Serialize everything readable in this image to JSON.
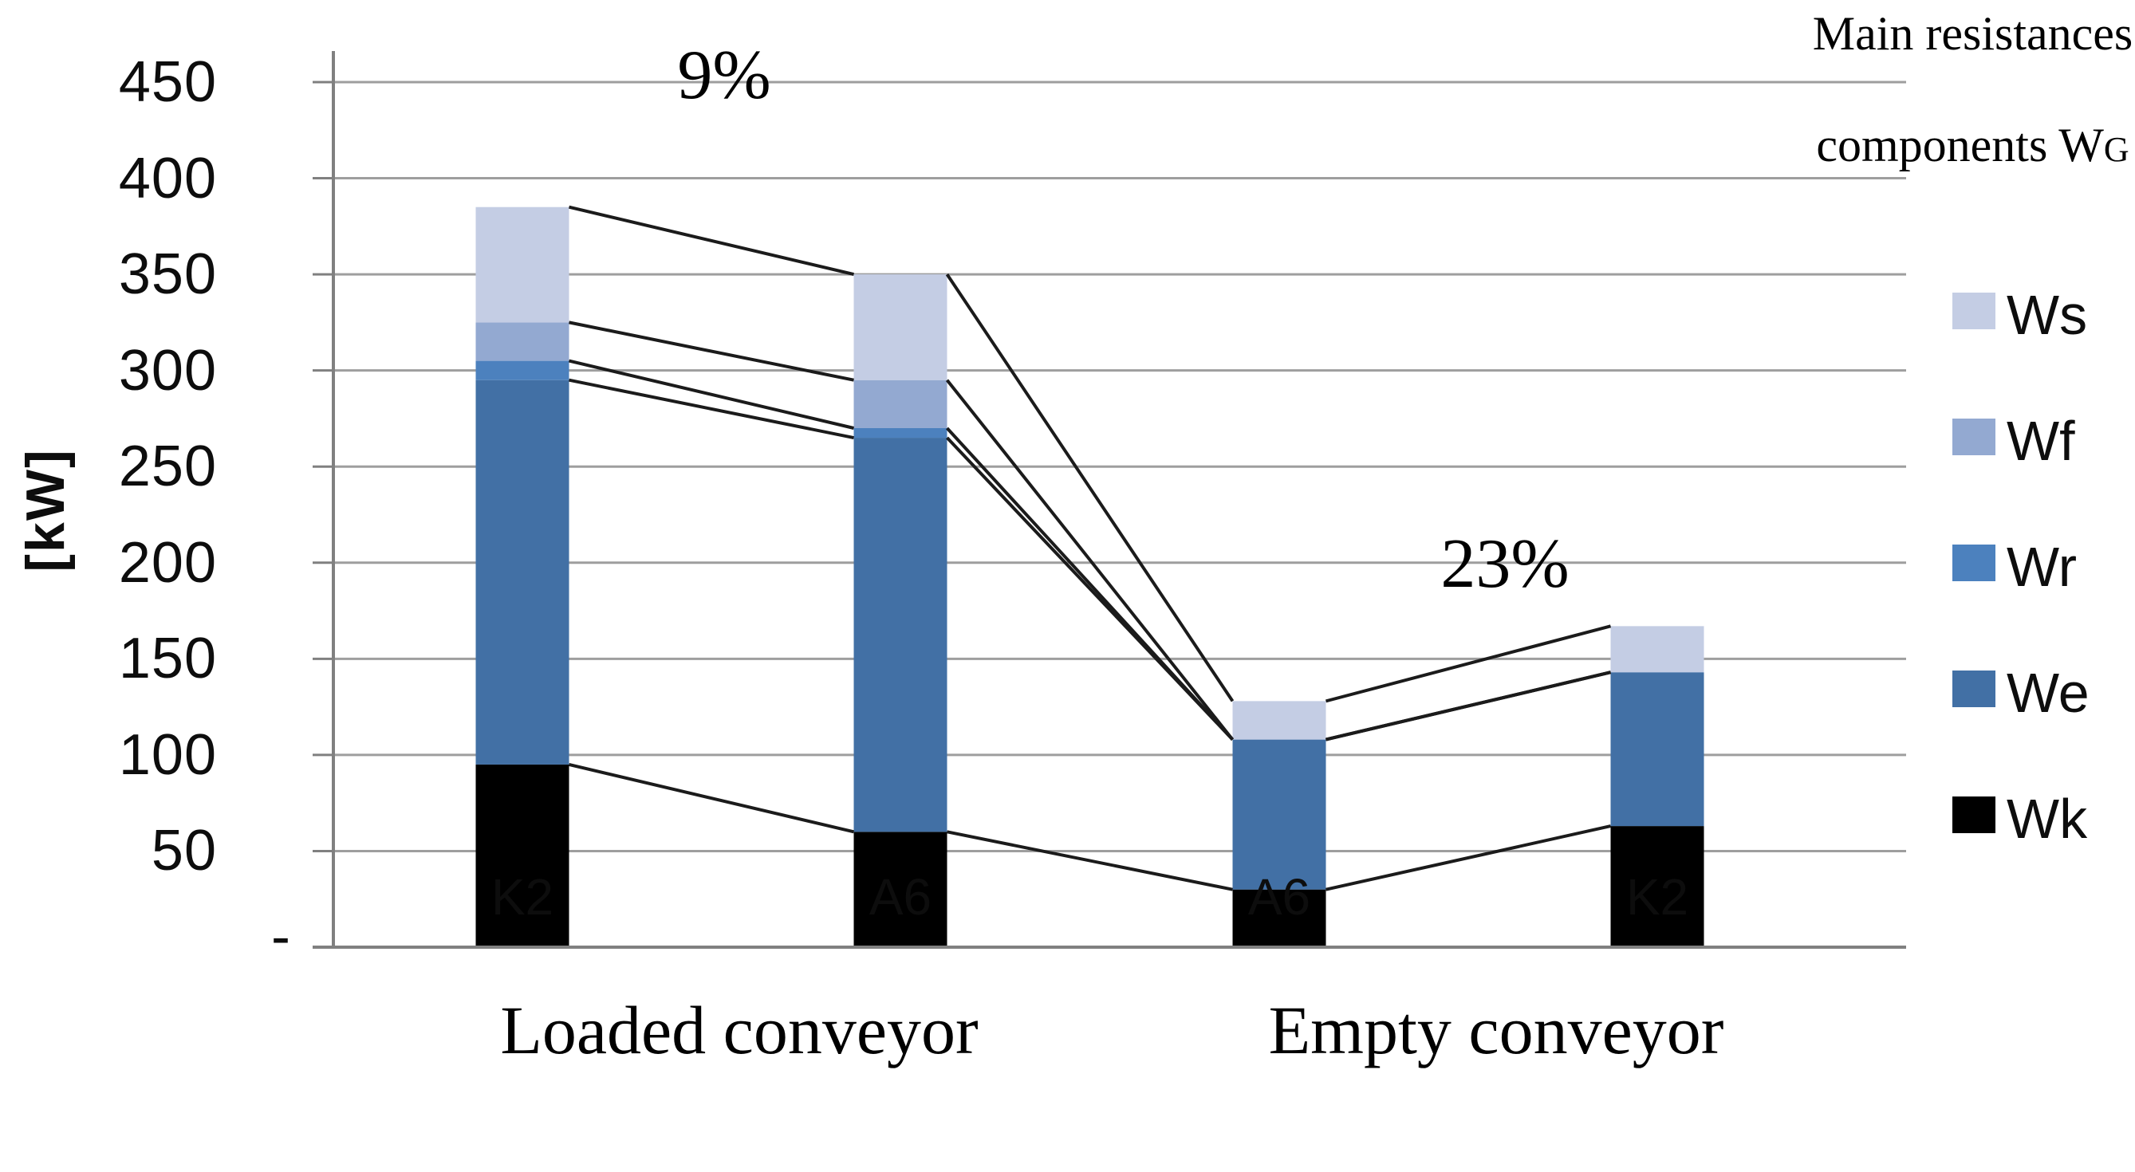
{
  "title": {
    "line1": "Main resistances",
    "line2_prefix": "components W",
    "line2_subscript": "G"
  },
  "y_axis": {
    "unit_label": "[kW]",
    "tick_labels": [
      "450",
      "400",
      "350",
      "300",
      "250",
      "200",
      "150",
      "100",
      "50"
    ],
    "tick_values": [
      450,
      400,
      350,
      300,
      250,
      200,
      150,
      100,
      50
    ],
    "zero_label": "-"
  },
  "x_axis": {
    "categories": [
      "K2",
      "A6",
      "A6",
      "K2"
    ],
    "group_labels": [
      "Loaded conveyor",
      "Empty conveyor"
    ]
  },
  "annotations": [
    {
      "text": "9%"
    },
    {
      "text": "23%"
    }
  ],
  "colors": {
    "gridline": "#9e9e9e",
    "axis": "#808080",
    "series_line": "#1b1b1b"
  },
  "chart_data": {
    "type": "bar",
    "stacked": true,
    "series_lines": true,
    "categories": [
      "K2",
      "A6",
      "A6",
      "K2"
    ],
    "group_labels": [
      {
        "label": "Loaded conveyor",
        "span": [
          0,
          1
        ]
      },
      {
        "label": "Empty conveyor",
        "span": [
          2,
          3
        ]
      }
    ],
    "series": [
      {
        "name": "Wk",
        "color": "#000000",
        "values": [
          95,
          60,
          30,
          63
        ]
      },
      {
        "name": "We",
        "color": "#4270a5",
        "values": [
          200,
          205,
          78,
          80
        ]
      },
      {
        "name": "Wr",
        "color": "#4c81be",
        "values": [
          10,
          5,
          0,
          0
        ]
      },
      {
        "name": "Wf",
        "color": "#93a9d1",
        "values": [
          20,
          25,
          0,
          0
        ]
      },
      {
        "name": "Ws",
        "color": "#c4cde4",
        "values": [
          60,
          55,
          20,
          24
        ]
      }
    ],
    "stack_totals": [
      385,
      350,
      128,
      167
    ],
    "annotations": [
      "9%",
      "23%"
    ],
    "ylabel": "[kW]",
    "ylim": [
      0,
      450
    ],
    "gridline_step": 50,
    "grid": true,
    "legend_position": "right",
    "legend_order": [
      "Ws",
      "Wf",
      "Wr",
      "We",
      "Wk"
    ]
  }
}
